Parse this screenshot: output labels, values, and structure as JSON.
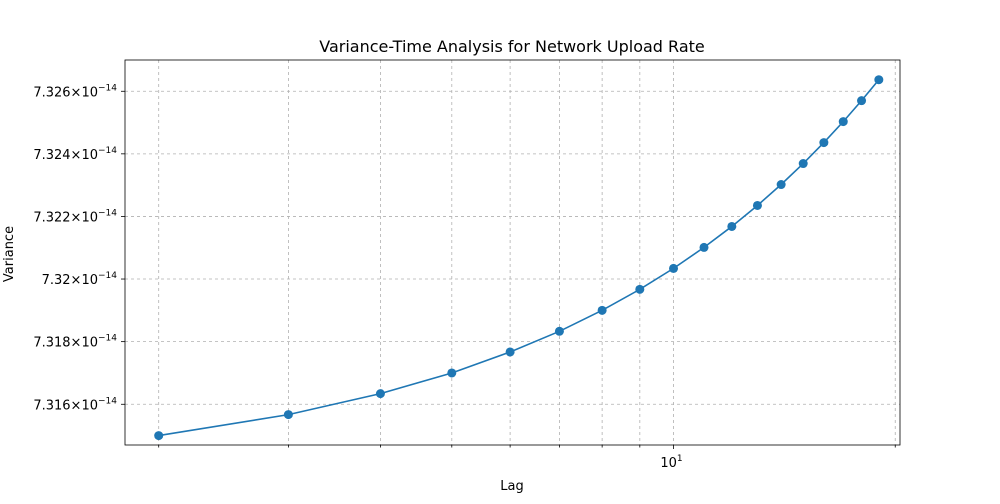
{
  "chart_data": {
    "type": "line",
    "title": "Variance-Time Analysis for Network Upload Rate",
    "xlabel": "Lag",
    "ylabel": "Variance",
    "x_scale": "log",
    "y_scale": "log",
    "xlim": [
      1.8,
      20.3
    ],
    "ylim": [
      7.3147e-14,
      7.327e-14
    ],
    "grid": true,
    "legend": "none",
    "line_color": "#1f77b4",
    "x_ticks_major": [
      {
        "value": 10,
        "base": "10",
        "exp": "1"
      }
    ],
    "x_ticks_minor": [
      2,
      3,
      4,
      5,
      6,
      7,
      8,
      9,
      20
    ],
    "y_ticks": [
      {
        "value": 7.316e-14,
        "mantissa": "7.316",
        "exp": "−14"
      },
      {
        "value": 7.318e-14,
        "mantissa": "7.318",
        "exp": "−14"
      },
      {
        "value": 7.32e-14,
        "mantissa": "7.32",
        "exp": "−14"
      },
      {
        "value": 7.322e-14,
        "mantissa": "7.322",
        "exp": "−14"
      },
      {
        "value": 7.324e-14,
        "mantissa": "7.324",
        "exp": "−14"
      },
      {
        "value": 7.326e-14,
        "mantissa": "7.326",
        "exp": "−14"
      }
    ],
    "x": [
      2,
      3,
      4,
      5,
      6,
      7,
      8,
      9,
      10,
      11,
      12,
      13,
      14,
      15,
      16,
      17,
      18,
      19
    ],
    "y": [
      7.315e-14,
      7.31567e-14,
      7.31634e-14,
      7.317e-14,
      7.31767e-14,
      7.31833e-14,
      7.319e-14,
      7.31967e-14,
      7.32034e-14,
      7.32101e-14,
      7.32168e-14,
      7.32235e-14,
      7.32302e-14,
      7.32369e-14,
      7.32436e-14,
      7.32503e-14,
      7.3257e-14,
      7.32637e-14
    ]
  }
}
